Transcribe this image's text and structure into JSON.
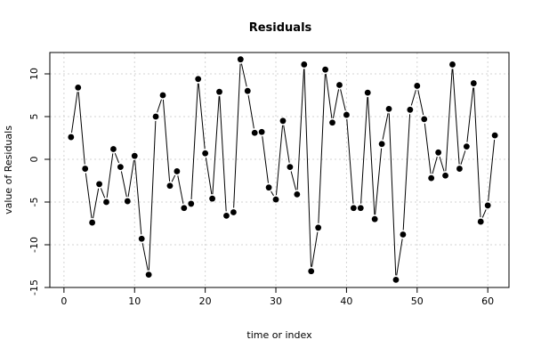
{
  "chart_data": {
    "type": "line",
    "title": "Residuals",
    "xlabel": "time or index",
    "ylabel": "value of Residuals",
    "xlim": [
      -2,
      63
    ],
    "ylim": [
      -15,
      12.5
    ],
    "x_ticks": [
      0,
      10,
      20,
      30,
      40,
      50,
      60
    ],
    "y_ticks": [
      -15,
      -10,
      -5,
      0,
      5,
      10
    ],
    "grid": true,
    "markers": "filled-circle",
    "series": [
      {
        "x": [
          1,
          2,
          3,
          4,
          5,
          6,
          7,
          8,
          9,
          10,
          11,
          12,
          13,
          14,
          15,
          16,
          17,
          18,
          19,
          20,
          21,
          22,
          23,
          24,
          25,
          26,
          27,
          28,
          29,
          30,
          31,
          32,
          33,
          34,
          35,
          36,
          37,
          38,
          39,
          40,
          41,
          42,
          43,
          44,
          45,
          46,
          47,
          48,
          49,
          50,
          51,
          52,
          53,
          54,
          55,
          56,
          57,
          58,
          59,
          60,
          61
        ],
        "values": [
          2.6,
          8.4,
          -1.1,
          -7.4,
          -2.9,
          -5.0,
          1.2,
          -0.9,
          -4.9,
          0.4,
          -9.3,
          -13.5,
          5.0,
          7.5,
          -3.1,
          -1.4,
          -5.7,
          -5.2,
          9.4,
          0.7,
          -4.6,
          7.9,
          -6.6,
          -6.2,
          11.7,
          8.0,
          3.1,
          3.2,
          -3.3,
          -4.7,
          4.5,
          -0.9,
          -4.1,
          11.1,
          -13.1,
          -8.0,
          10.5,
          4.3,
          8.7,
          5.2,
          -5.7,
          -5.7,
          7.8,
          -7.0,
          1.8,
          5.9,
          -14.1,
          -8.8,
          5.8,
          8.6,
          4.7,
          -2.2,
          0.8,
          -1.9,
          11.1,
          -1.1,
          1.5,
          8.9,
          -7.3,
          -5.4,
          2.8
        ]
      }
    ]
  }
}
